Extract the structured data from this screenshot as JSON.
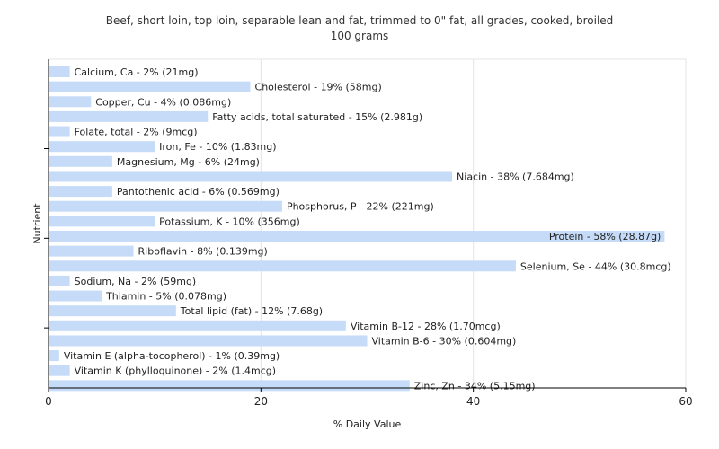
{
  "chart_data": {
    "type": "bar",
    "orientation": "horizontal",
    "title_line1": "Beef, short loin, top loin, separable lean and fat, trimmed to 0\" fat, all grades, cooked, broiled",
    "title_line2": "100 grams",
    "xlabel": "% Daily Value",
    "ylabel": "Nutrient",
    "xlim": [
      0,
      60
    ],
    "xticks": [
      0,
      20,
      40,
      60
    ],
    "grid": true,
    "bar_color": "#c6dbf7",
    "categories": [
      "Calcium, Ca",
      "Cholesterol",
      "Copper, Cu",
      "Fatty acids, total saturated",
      "Folate, total",
      "Iron, Fe",
      "Magnesium, Mg",
      "Niacin",
      "Pantothenic acid",
      "Phosphorus, P",
      "Potassium, K",
      "Protein",
      "Riboflavin",
      "Selenium, Se",
      "Sodium, Na",
      "Thiamin",
      "Total lipid (fat)",
      "Vitamin B-12",
      "Vitamin B-6",
      "Vitamin E (alpha-tocopherol)",
      "Vitamin K (phylloquinone)",
      "Zinc, Zn"
    ],
    "values": [
      2,
      19,
      4,
      15,
      2,
      10,
      6,
      38,
      6,
      22,
      10,
      58,
      8,
      44,
      2,
      5,
      12,
      28,
      30,
      1,
      2,
      34
    ],
    "labels": [
      "Calcium, Ca - 2% (21mg)",
      "Cholesterol - 19% (58mg)",
      "Copper, Cu - 4% (0.086mg)",
      "Fatty acids, total saturated - 15% (2.981g)",
      "Folate, total - 2% (9mcg)",
      "Iron, Fe - 10% (1.83mg)",
      "Magnesium, Mg - 6% (24mg)",
      "Niacin - 38% (7.684mg)",
      "Pantothenic acid - 6% (0.569mg)",
      "Phosphorus, P - 22% (221mg)",
      "Potassium, K - 10% (356mg)",
      "Protein - 58% (28.87g)",
      "Riboflavin - 8% (0.139mg)",
      "Selenium, Se - 44% (30.8mcg)",
      "Sodium, Na - 2% (59mg)",
      "Thiamin - 5% (0.078mg)",
      "Total lipid (fat) - 12% (7.68g)",
      "Vitamin B-12 - 28% (1.70mcg)",
      "Vitamin B-6 - 30% (0.604mg)",
      "Vitamin E (alpha-tocopherol) - 1% (0.39mg)",
      "Vitamin K (phylloquinone) - 2% (1.4mcg)",
      "Zinc, Zn - 34% (5.15mg)"
    ]
  }
}
